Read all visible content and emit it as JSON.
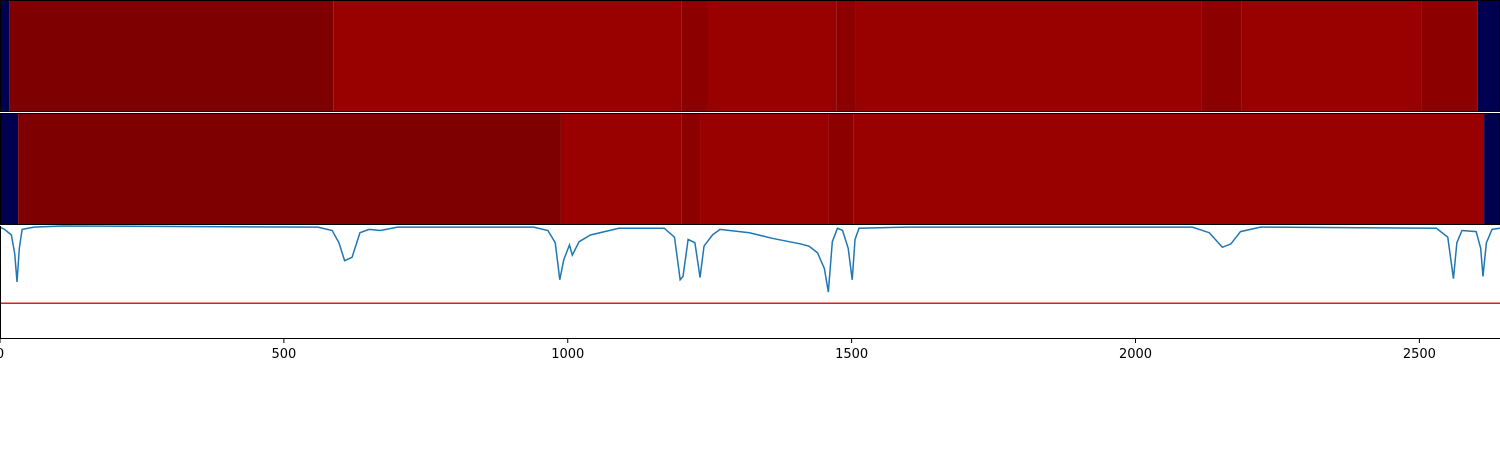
{
  "chart_data": [
    {
      "type": "heatmap",
      "bins": [
        0,
        16,
        587,
        1200,
        1247,
        1473,
        1506,
        2117,
        2186,
        2503,
        2603,
        2642
      ],
      "colors": [
        "#000050",
        "#7f0000",
        "#990000",
        "#8c0000",
        "#990000",
        "#8c0000",
        "#990000",
        "#8c0000",
        "#990000",
        "#8c0000",
        "#000050"
      ],
      "xlim": [
        0,
        2642
      ]
    },
    {
      "type": "heatmap",
      "bins": [
        0,
        32,
        988,
        1200,
        1233,
        1460,
        1503,
        2614,
        2642
      ],
      "colors": [
        "#000050",
        "#7f0000",
        "#990000",
        "#8c0000",
        "#990000",
        "#8c0000",
        "#990000",
        "#000050"
      ],
      "xlim": [
        0,
        2642
      ]
    },
    {
      "type": "line",
      "x": [
        0,
        8,
        20,
        26,
        30,
        34,
        39,
        60,
        110,
        560,
        585,
        597,
        607,
        620,
        634,
        650,
        670,
        700,
        940,
        965,
        978,
        986,
        993,
        1003,
        1008,
        1020,
        1040,
        1090,
        1170,
        1188,
        1198,
        1203,
        1212,
        1224,
        1233,
        1240,
        1255,
        1268,
        1320,
        1360,
        1380,
        1410,
        1425,
        1440,
        1452,
        1459,
        1466,
        1475,
        1484,
        1494,
        1501,
        1506,
        1513,
        1600,
        2100,
        2130,
        2153,
        2168,
        2185,
        2220,
        2530,
        2550,
        2560,
        2566,
        2575,
        2600,
        2608,
        2612,
        2618,
        2628,
        2642
      ],
      "values": [
        0.99,
        0.97,
        0.92,
        0.75,
        0.5,
        0.8,
        0.97,
        0.99,
        1.0,
        0.99,
        0.96,
        0.85,
        0.69,
        0.72,
        0.94,
        0.97,
        0.96,
        0.99,
        0.99,
        0.96,
        0.85,
        0.52,
        0.7,
        0.83,
        0.74,
        0.86,
        0.92,
        0.98,
        0.98,
        0.9,
        0.52,
        0.55,
        0.88,
        0.85,
        0.54,
        0.82,
        0.92,
        0.97,
        0.94,
        0.89,
        0.87,
        0.84,
        0.82,
        0.76,
        0.62,
        0.41,
        0.86,
        0.98,
        0.96,
        0.8,
        0.52,
        0.88,
        0.98,
        0.99,
        0.99,
        0.94,
        0.81,
        0.84,
        0.95,
        0.99,
        0.98,
        0.9,
        0.53,
        0.85,
        0.96,
        0.95,
        0.8,
        0.55,
        0.85,
        0.97,
        0.98
      ],
      "color": "#1f77b4",
      "hline": {
        "value": 0.31,
        "color": "#e41a1c"
      },
      "xlim": [
        0,
        2642
      ],
      "ylim": [
        0,
        1
      ],
      "xticks": [
        0,
        500,
        1000,
        1500,
        2000,
        2500
      ]
    }
  ]
}
